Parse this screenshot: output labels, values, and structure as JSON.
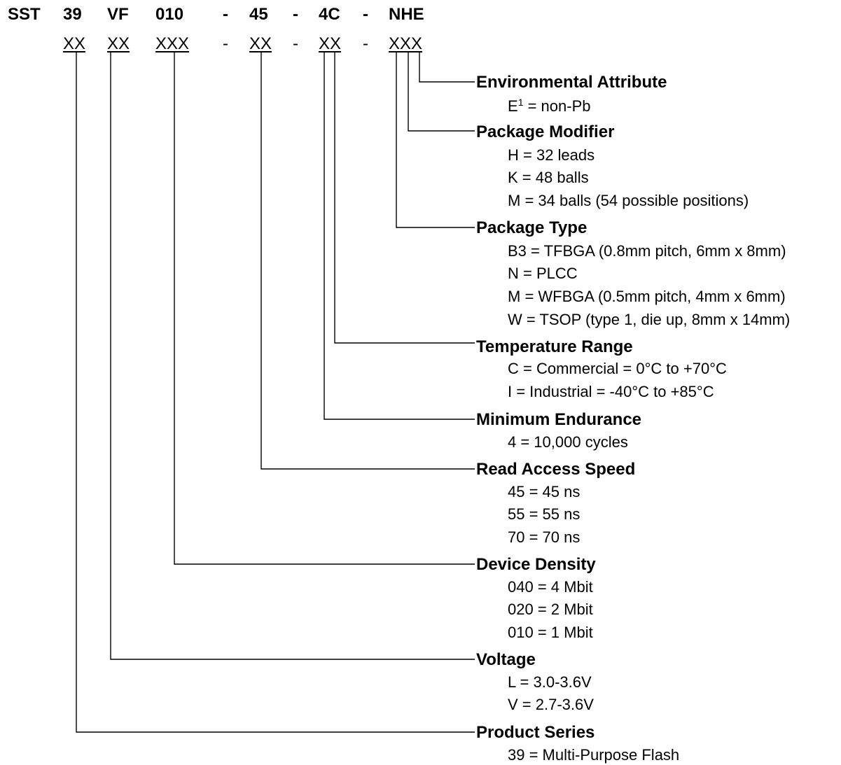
{
  "part_number": {
    "prefix": "SST",
    "series": "39",
    "voltage": "VF",
    "density": "010",
    "dash1": "-",
    "speed": "45",
    "dash2": "-",
    "endurance_temp": "4C",
    "dash3": "-",
    "package": "NHE"
  },
  "placeholders": {
    "series": "XX",
    "voltage": "XX",
    "density": "XXX",
    "dash1": "-",
    "speed": "XX",
    "dash2": "-",
    "endurance_temp": "XX",
    "dash3": "-",
    "package": "XXX"
  },
  "fields": [
    {
      "heading": "Environmental Attribute",
      "items": [
        {
          "pre": "E",
          "sup": "1",
          "post": " = non-Pb"
        }
      ]
    },
    {
      "heading": "Package Modifier",
      "items": [
        "H = 32 leads",
        "K = 48 balls",
        "M = 34 balls (54 possible positions)"
      ]
    },
    {
      "heading": "Package Type",
      "items": [
        "B3 = TFBGA (0.8mm pitch, 6mm x 8mm)",
        "N = PLCC",
        "M = WFBGA (0.5mm pitch, 4mm x 6mm)",
        "W = TSOP (type 1, die up, 8mm x 14mm)"
      ]
    },
    {
      "heading": "Temperature Range",
      "items": [
        "C = Commercial = 0°C to +70°C",
        "I = Industrial = -40°C to +85°C"
      ]
    },
    {
      "heading": "Minimum Endurance",
      "items": [
        "4 = 10,000 cycles"
      ]
    },
    {
      "heading": "Read Access Speed",
      "items": [
        "45 = 45 ns",
        "55 = 55 ns",
        "70 = 70 ns"
      ]
    },
    {
      "heading": "Device Density",
      "items": [
        "040 = 4 Mbit",
        "020 = 2 Mbit",
        "010 = 1 Mbit"
      ]
    },
    {
      "heading": "Voltage",
      "items": [
        "L = 3.0-3.6V",
        "V = 2.7-3.6V"
      ]
    },
    {
      "heading": "Product Series",
      "items": [
        "39 = Multi-Purpose Flash"
      ]
    }
  ]
}
